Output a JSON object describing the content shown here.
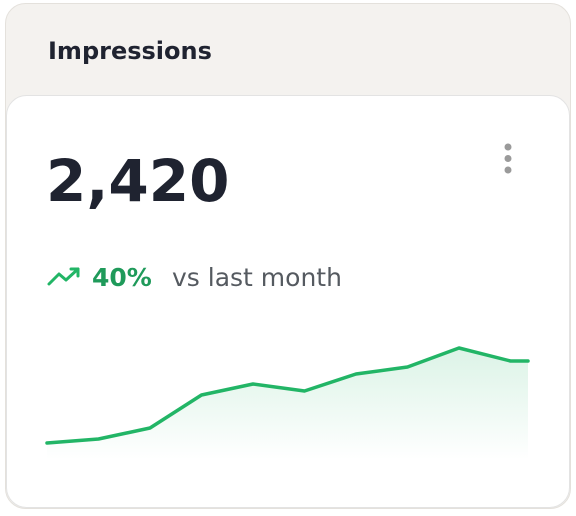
{
  "card": {
    "title": "Impressions",
    "value": "2,420",
    "change": "40%",
    "comparison": "vs last month"
  },
  "chart_data": {
    "type": "line",
    "values": [
      17,
      21,
      32,
      65,
      76,
      69,
      86,
      93,
      112,
      99
    ],
    "color": "#22b566"
  }
}
